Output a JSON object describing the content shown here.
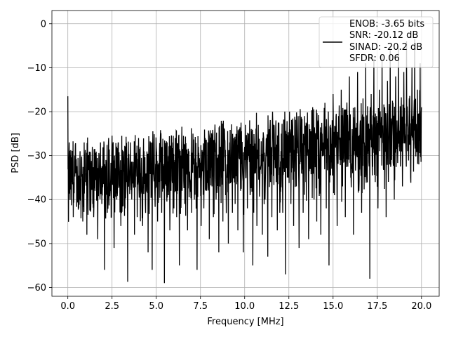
{
  "chart_data": {
    "type": "line",
    "title": "",
    "xlabel": "Frequency [MHz]",
    "ylabel": "PSD [dB]",
    "xlim": [
      -0.9,
      21.0
    ],
    "ylim": [
      -62,
      3
    ],
    "xticks": [
      0.0,
      2.5,
      5.0,
      7.5,
      10.0,
      12.5,
      15.0,
      17.5,
      20.0
    ],
    "xtick_labels": [
      "0.0",
      "2.5",
      "5.0",
      "7.5",
      "10.0",
      "12.5",
      "15.0",
      "17.5",
      "20.0"
    ],
    "yticks": [
      0,
      -10,
      -20,
      -30,
      -40,
      -50,
      -60
    ],
    "ytick_labels": [
      "0",
      "−10",
      "−20",
      "−30",
      "−40",
      "−50",
      "−60"
    ],
    "grid": true,
    "legend_position": "top-right",
    "legend_entries": [
      "ENOB: -3.65 bits",
      "SNR: -20.12 dB",
      "SINAD: -20.2 dB",
      "SFDR: 0.06"
    ],
    "series": [
      {
        "color": "#000000",
        "x_start": 0.0,
        "x_end": 20.0,
        "noise_floor_start": -33,
        "noise_floor_end": -22,
        "values_y": [
          -16.5,
          -27,
          -32,
          -36,
          -44,
          -30,
          -34,
          -38,
          -42,
          -29,
          -31,
          -45,
          -27,
          -36,
          -48,
          -31,
          -35,
          -40,
          -28,
          -44,
          -38,
          -32,
          -49,
          -30,
          -27,
          -41,
          -35,
          -56,
          -31,
          -43,
          -26,
          -38,
          -44,
          -29,
          -51,
          -33,
          -40,
          -27,
          -37,
          -46,
          -31,
          -29,
          -42,
          -36,
          -58.7,
          -32,
          -27,
          -40,
          -35,
          -48,
          -30,
          -44,
          -26,
          -38,
          -33,
          -46,
          -29,
          -41,
          -36,
          -52,
          -31,
          -27,
          -56,
          -34,
          -39,
          -28,
          -45,
          -33,
          -26,
          -43,
          -37,
          -59,
          -31,
          -27,
          -39,
          -47,
          -29,
          -35,
          -42,
          -26,
          -44,
          -32,
          -55,
          -30,
          -38,
          -25.5,
          -41,
          -33,
          -47,
          -29,
          -36,
          -43,
          -25,
          -40,
          -31,
          -56,
          -28,
          -35,
          -46,
          -30,
          -42,
          -26,
          -38,
          -33,
          -49,
          -29,
          -37,
          -44,
          -25,
          -40,
          -31,
          -52,
          -28,
          -35,
          -45,
          -24,
          -39,
          -32,
          -50,
          -27,
          -36,
          -43,
          -26,
          -41,
          -33,
          -47,
          -24,
          -38,
          -31,
          -52,
          -28,
          -35,
          -42,
          -25,
          -39,
          -30,
          -55,
          -27,
          -34,
          -46,
          -23,
          -37,
          -32,
          -48,
          -26,
          -40,
          -29,
          -53,
          -24,
          -36,
          -44,
          -27,
          -31,
          -22,
          -47,
          -29,
          -39,
          -25,
          -43,
          -33,
          -57,
          -26,
          -35,
          -20,
          -41,
          -30,
          -46,
          -23,
          -37,
          -28,
          -51,
          -25,
          -34,
          -43,
          -21,
          -36,
          -30,
          -49,
          -24,
          -32,
          -19,
          -40,
          -27,
          -45,
          -22,
          -35,
          -48,
          -25,
          -30,
          -18,
          -42,
          -28,
          -55,
          -23,
          -33,
          -16,
          -39,
          -26,
          -46,
          -21,
          -31,
          -15,
          -37,
          -25,
          -44,
          -20,
          -29,
          -12,
          -35,
          -24,
          -48,
          -19,
          -30,
          -11,
          -38,
          -22,
          -43,
          -17,
          -27,
          -9,
          -34,
          -23,
          -58,
          -16,
          -28,
          -8,
          -36,
          -21,
          -42,
          -15,
          -26,
          -7,
          -33,
          -19,
          -44,
          -13,
          -24,
          -6,
          -31,
          -18,
          -40,
          -12,
          -22,
          -5,
          -29,
          -20,
          -37,
          -11,
          -25,
          -4,
          -28,
          -17,
          -35,
          -10,
          -21,
          -3.5,
          -26,
          -15,
          -32,
          -9,
          -19
        ]
      }
    ]
  }
}
